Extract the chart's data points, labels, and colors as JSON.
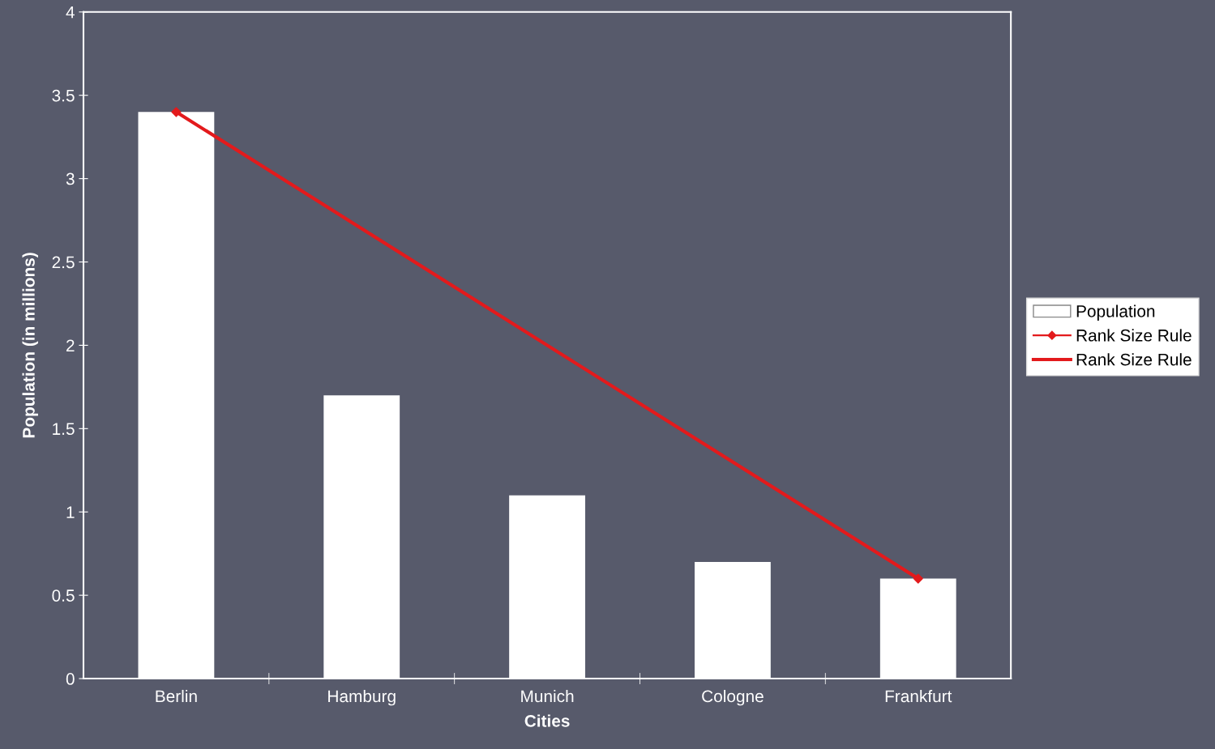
{
  "chart_data": {
    "type": "bar",
    "xlabel": "Cities",
    "ylabel": "Population (in millions)",
    "categories": [
      "Berlin",
      "Hamburg",
      "Munich",
      "Cologne",
      "Frankfurt"
    ],
    "series": [
      {
        "name": "Population",
        "color": "#ffffff",
        "values": [
          3.4,
          1.7,
          1.1,
          0.7,
          0.6
        ]
      },
      {
        "name": "Rank Size Rule",
        "type": "scatter",
        "color": "#e31a1c",
        "marker": "diamond",
        "x": [
          "Berlin",
          "Frankfurt"
        ],
        "values": [
          3.4,
          0.6
        ]
      },
      {
        "name": "Rank Size Rule",
        "type": "line",
        "color": "#e31a1c",
        "line_style": "solid",
        "x": [
          "Berlin",
          "Frankfurt"
        ],
        "values": [
          3.4,
          0.6
        ]
      }
    ],
    "ylim": [
      0,
      4
    ],
    "yticks": [
      0,
      0.5,
      1,
      1.5,
      2,
      2.5,
      3,
      3.5,
      4
    ],
    "grid": false,
    "legend": "right"
  }
}
